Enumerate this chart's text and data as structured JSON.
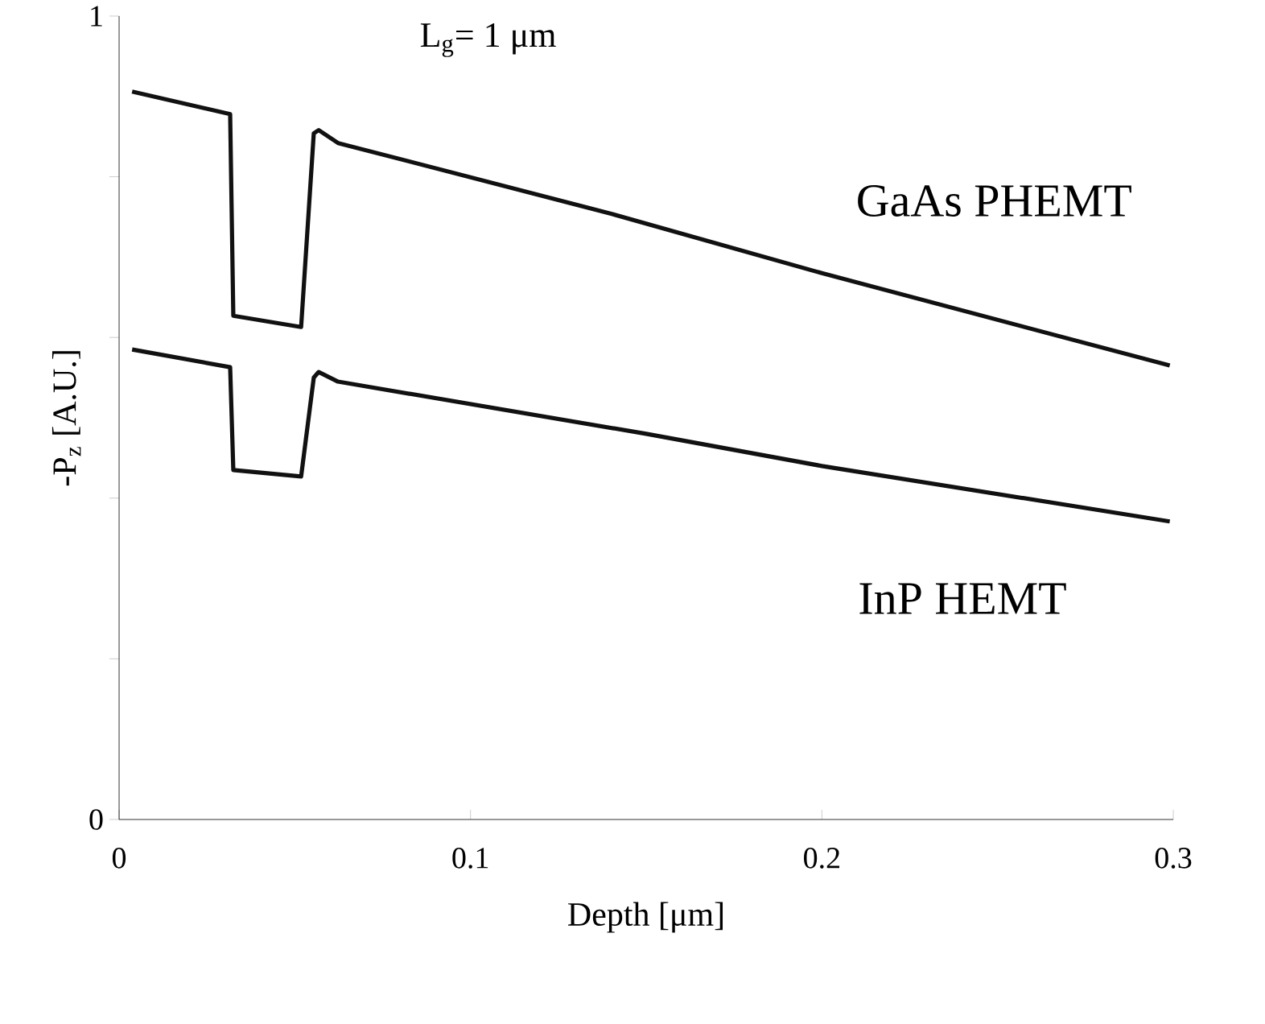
{
  "chart_data": {
    "type": "line",
    "xlabel": "Depth [μm]",
    "ylabel": "-P$_{z}$ [A.U.]",
    "annotations": [
      "L$_{g}$= 1 μm"
    ],
    "xlim": [
      0,
      0.3
    ],
    "ylim": [
      0,
      1
    ],
    "xticks": [
      0,
      0.1,
      0.2,
      0.3
    ],
    "yticks": [
      0,
      {
        "value": 0.2,
        "label": null
      },
      {
        "value": 0.4,
        "label": null
      },
      {
        "value": 0.6,
        "label": null
      },
      {
        "value": 0.8,
        "label": null
      },
      1
    ],
    "line_style": "solid",
    "series": [
      {
        "name": "GaAs PHEMT",
        "color": "#111111",
        "x": [
          0.0037,
          0.0316,
          0.0325,
          0.0518,
          0.0554,
          0.0568,
          0.0623,
          0.14,
          0.2,
          0.299
        ],
        "values": [
          0.906,
          0.878,
          0.627,
          0.613,
          0.854,
          0.858,
          0.842,
          0.754,
          0.68,
          0.565
        ]
      },
      {
        "name": "InP HEMT",
        "color": "#111111",
        "x": [
          0.0037,
          0.0316,
          0.0325,
          0.0518,
          0.0554,
          0.0568,
          0.0623,
          0.15,
          0.2,
          0.299
        ],
        "values": [
          0.585,
          0.563,
          0.435,
          0.427,
          0.55,
          0.557,
          0.545,
          0.48,
          0.44,
          0.371
        ]
      }
    ]
  }
}
